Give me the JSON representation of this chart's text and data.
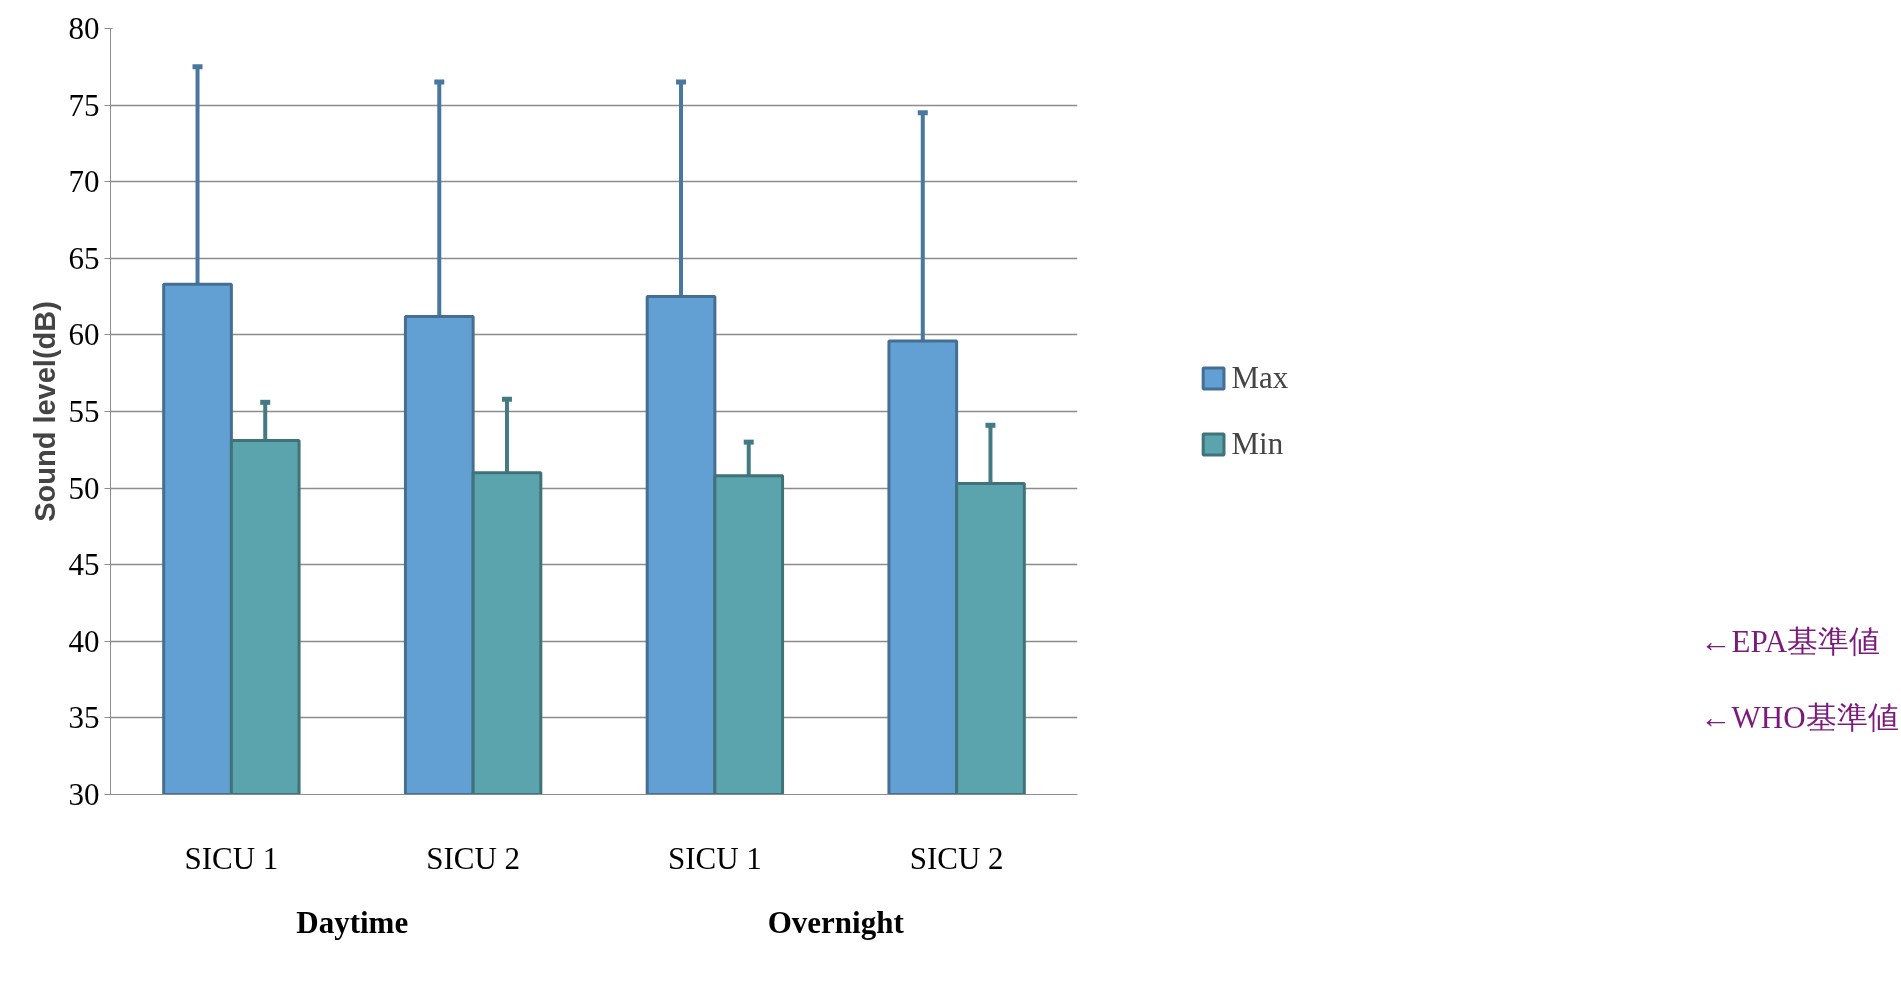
{
  "chart_data": {
    "type": "bar",
    "ylabel": "Sound level(dB)",
    "categories": [
      "SICU 1",
      "SICU 2",
      "SICU 1",
      "SICU 2"
    ],
    "series": [
      {
        "name": "Max",
        "color": "#629fd3",
        "values": [
          63.3,
          61.2,
          62.5,
          59.6
        ],
        "errors": [
          [
            63.3,
            77.5
          ],
          [
            61.2,
            76.5
          ],
          [
            62.5,
            76.5
          ],
          [
            59.6,
            74.5
          ]
        ]
      },
      {
        "name": "Min",
        "color": "#5ba4ae",
        "values": [
          53.1,
          51.0,
          50.8,
          50.3
        ],
        "errors": [
          [
            53.1,
            55.6
          ],
          [
            51.0,
            55.8
          ],
          [
            50.8,
            53.0
          ],
          [
            50.3,
            54.1
          ]
        ]
      }
    ],
    "ylim": [
      30,
      80
    ],
    "yticks": [
      30,
      35,
      40,
      45,
      50,
      55,
      60,
      65,
      70,
      75,
      80
    ],
    "grid": "y",
    "legend": "right",
    "annotations": [
      "Daytime",
      "Overnight",
      "←EPA基準値",
      "←WHO基準値"
    ]
  }
}
